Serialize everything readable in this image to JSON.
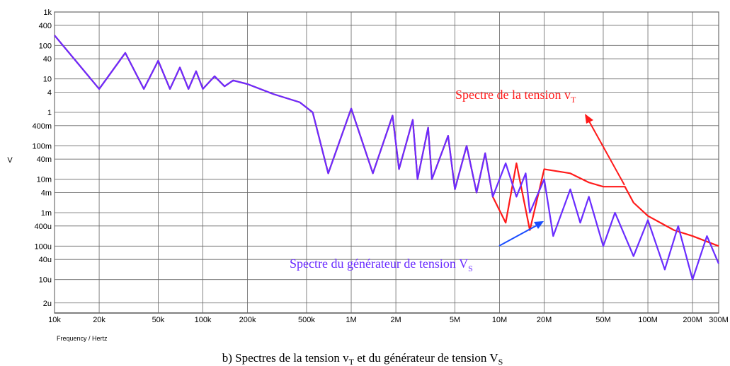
{
  "chart_data": {
    "type": "line",
    "xlabel": "Frequency / Hertz",
    "ylabel": "V",
    "log_x": true,
    "log_y": true,
    "grid": true,
    "xlim": [
      10000,
      300000000
    ],
    "ylim": [
      1e-06,
      1000
    ],
    "xticks": [
      {
        "value": 10000,
        "label": "10k"
      },
      {
        "value": 20000,
        "label": "20k"
      },
      {
        "value": 50000,
        "label": "50k"
      },
      {
        "value": 100000,
        "label": "100k"
      },
      {
        "value": 200000,
        "label": "200k"
      },
      {
        "value": 500000,
        "label": "500k"
      },
      {
        "value": 1000000,
        "label": "1M"
      },
      {
        "value": 2000000,
        "label": "2M"
      },
      {
        "value": 5000000,
        "label": "5M"
      },
      {
        "value": 10000000,
        "label": "10M"
      },
      {
        "value": 20000000,
        "label": "20M"
      },
      {
        "value": 50000000,
        "label": "50M"
      },
      {
        "value": 100000000,
        "label": "100M"
      },
      {
        "value": 200000000,
        "label": "200M"
      },
      {
        "value": 300000000,
        "label": "300M"
      }
    ],
    "yticks": [
      {
        "value": 1000,
        "label": "1k"
      },
      400,
      100,
      40,
      10,
      4,
      1,
      {
        "value": 0.4,
        "label": "400m"
      },
      {
        "value": 0.1,
        "label": "100m"
      },
      {
        "value": 0.04,
        "label": "40m"
      },
      {
        "value": 0.01,
        "label": "10m"
      },
      {
        "value": 0.004,
        "label": "4m"
      },
      {
        "value": 0.001,
        "label": "1m"
      },
      {
        "value": 0.0004,
        "label": "400u"
      },
      {
        "value": 0.0001,
        "label": "100u"
      },
      {
        "value": 4e-05,
        "label": "40u"
      },
      {
        "value": 1e-05,
        "label": "10u"
      },
      {
        "value": 2e-06,
        "label": "2u"
      }
    ],
    "series": [
      {
        "color": "#ff1a1a",
        "x": [
          10000,
          20000,
          30000,
          40000,
          50000,
          60000,
          70000,
          80000,
          90000,
          100000,
          120000,
          140000,
          160000,
          200000,
          300000,
          450000,
          550000,
          700000,
          1000000,
          1400000,
          1900000,
          2100000,
          2600000,
          2800000,
          3300000,
          3500000,
          4500000,
          5000000,
          6000000,
          7000000,
          8000000,
          9000000,
          11000000,
          13000000,
          16000000,
          20000000,
          30000000,
          40000000,
          50000000,
          70000000,
          80000000,
          100000000,
          150000000,
          200000000,
          300000000
        ],
        "values": [
          200,
          5,
          60,
          5,
          35,
          5,
          22,
          5,
          17,
          5,
          12,
          6,
          9,
          7,
          3.5,
          2,
          1,
          0.015,
          1.3,
          0.015,
          0.8,
          0.02,
          0.6,
          0.01,
          0.35,
          0.01,
          0.2,
          0.005,
          0.1,
          0.004,
          0.06,
          0.003,
          0.0005,
          0.03,
          0.0003,
          0.02,
          0.015,
          0.008,
          0.006,
          0.006,
          0.002,
          0.0008,
          0.0003,
          0.0002,
          0.0001
        ]
      },
      {
        "color": "#6a2cff",
        "x": [
          10000,
          20000,
          30000,
          40000,
          50000,
          60000,
          70000,
          80000,
          90000,
          100000,
          120000,
          140000,
          160000,
          200000,
          300000,
          450000,
          550000,
          700000,
          1000000,
          1400000,
          1900000,
          2100000,
          2600000,
          2800000,
          3300000,
          3500000,
          4500000,
          5000000,
          6000000,
          7000000,
          8000000,
          9000000,
          11000000,
          13000000,
          15000000,
          16000000,
          20000000,
          23000000,
          30000000,
          35000000,
          40000000,
          50000000,
          60000000,
          80000000,
          100000000,
          130000000,
          160000000,
          200000000,
          250000000,
          300000000
        ],
        "values": [
          200,
          5,
          60,
          5,
          35,
          5,
          22,
          5,
          17,
          5,
          12,
          6,
          9,
          7,
          3.5,
          2,
          1,
          0.015,
          1.3,
          0.015,
          0.8,
          0.02,
          0.6,
          0.01,
          0.35,
          0.01,
          0.2,
          0.005,
          0.1,
          0.004,
          0.06,
          0.003,
          0.03,
          0.003,
          0.015,
          0.001,
          0.01,
          0.0002,
          0.005,
          0.0005,
          0.003,
          0.0001,
          0.001,
          5e-05,
          0.0006,
          2e-05,
          0.0004,
          1e-05,
          0.0002,
          3e-05
        ]
      }
    ],
    "annotations": [
      {
        "text": "Spectre de la tension v",
        "sub": "T",
        "color": "#ff1a1a"
      },
      {
        "text": "Spectre du générateur de tension V",
        "sub": "S",
        "color": "#6a2cff"
      }
    ],
    "caption": {
      "parts": [
        "b) Spectres de la tension v",
        "T",
        " et du générateur de tension V",
        "S"
      ]
    }
  }
}
